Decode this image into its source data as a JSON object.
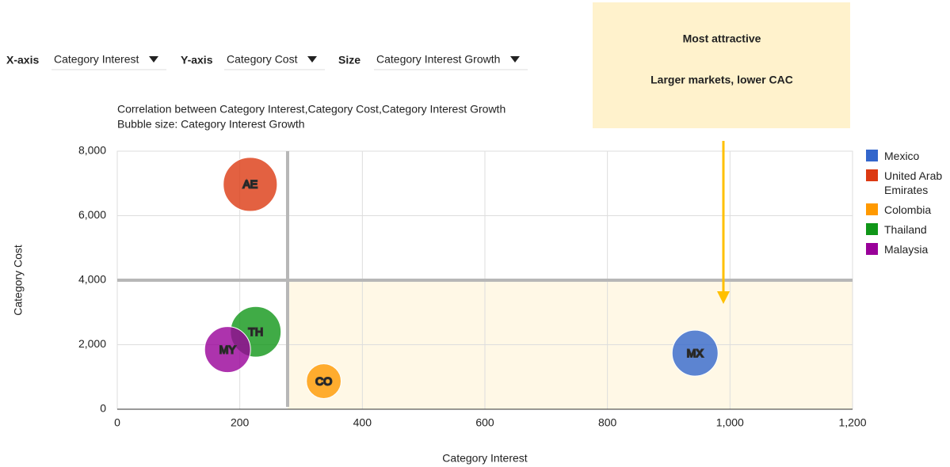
{
  "controls": [
    {
      "label": "X-axis",
      "value": "Category Interest"
    },
    {
      "label": "Y-axis",
      "value": "Category Cost"
    },
    {
      "label": "Size",
      "value": "Category Interest Growth"
    }
  ],
  "chart_data": {
    "type": "bubble",
    "title": "Correlation between Category Interest,Category Cost,Category Interest Growth",
    "subtitle": "Bubble size: Category Interest Growth",
    "x_label": "Category Interest",
    "y_label": "Category Cost",
    "xlim": [
      0,
      1200
    ],
    "ylim": [
      0,
      8000
    ],
    "xticks": [
      0,
      200,
      400,
      600,
      800,
      {
        "value": 1000,
        "label": "1,000"
      },
      {
        "value": 1200,
        "label": "1,200"
      }
    ],
    "yticks": [
      0,
      {
        "value": 2000,
        "label": "2,000"
      },
      {
        "value": 4000,
        "label": "4,000"
      },
      {
        "value": 6000,
        "label": "6,000"
      },
      {
        "value": 8000,
        "label": "8,000"
      }
    ],
    "grid": true,
    "quadrant_lines": {
      "x": 278,
      "y": 4000
    },
    "annotation": {
      "title": "Most attractive",
      "text": "Larger markets, lower CAC"
    },
    "series": [
      {
        "name": "Mexico",
        "color": "#3366cc",
        "label": "MX",
        "x": [
          943
        ],
        "values": [
          1740
        ],
        "sizes": [
          8.4
        ]
      },
      {
        "name": "United Arab Emirates",
        "color": "#dc3912",
        "label": "AE",
        "x": [
          217
        ],
        "values": [
          6970
        ],
        "sizes": [
          11.6
        ]
      },
      {
        "name": "Colombia",
        "color": "#ff9900",
        "label": "CO",
        "x": [
          337
        ],
        "values": [
          870
        ],
        "sizes": [
          4.8
        ]
      },
      {
        "name": "Thailand",
        "color": "#109618",
        "label": "TH",
        "x": [
          226
        ],
        "values": [
          2400
        ],
        "sizes": [
          10.2
        ]
      },
      {
        "name": "Malaysia",
        "color": "#990099",
        "label": "MY",
        "x": [
          180
        ],
        "values": [
          1850
        ],
        "sizes": [
          8.4
        ]
      }
    ]
  }
}
